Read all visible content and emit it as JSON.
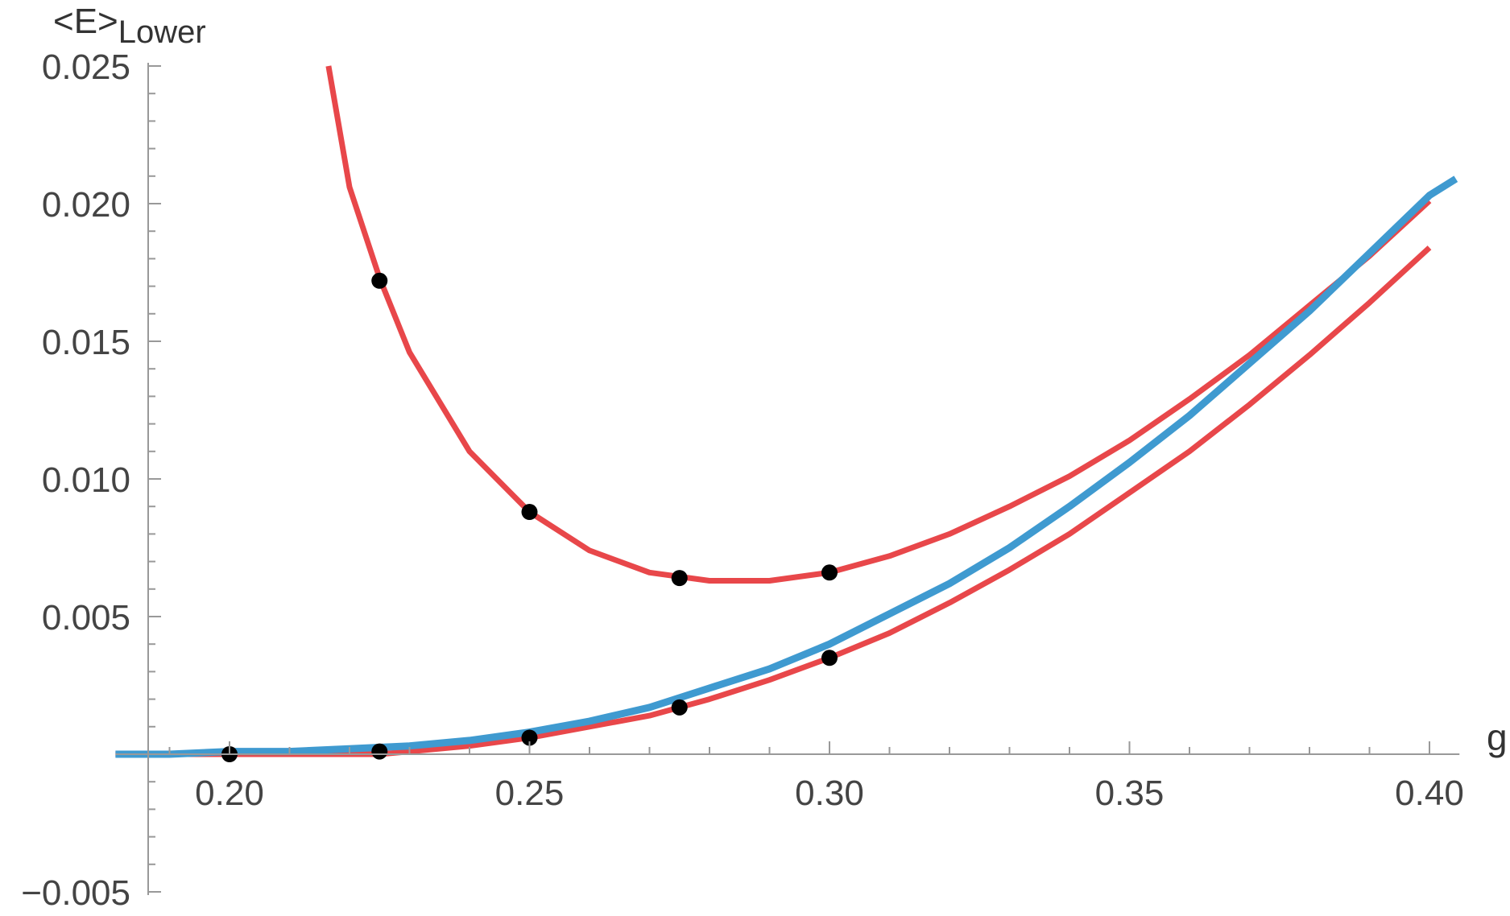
{
  "chart_data": {
    "type": "line",
    "title": "",
    "xlabel": "g",
    "ylabel": "<E>",
    "ylabel_subscript": "Lower",
    "xlim": [
      0.181,
      0.405
    ],
    "ylim": [
      -0.005,
      0.025
    ],
    "x_major_ticks": [
      0.2,
      0.25,
      0.3,
      0.35,
      0.4
    ],
    "x_tick_labels": [
      "0.20",
      "0.25",
      "0.30",
      "0.35",
      "0.40"
    ],
    "x_minor_step": 0.01,
    "y_major_ticks": [
      -0.005,
      0.005,
      0.01,
      0.015,
      0.02,
      0.025
    ],
    "y_tick_labels": [
      "−0.005",
      "0.005",
      "0.010",
      "0.015",
      "0.020",
      "0.025"
    ],
    "y_minor_step": 0.001,
    "grid": false,
    "legend": "none",
    "series": [
      {
        "color": "#e8474a",
        "x": [
          0.2165,
          0.22,
          0.225,
          0.23,
          0.24,
          0.25,
          0.26,
          0.27,
          0.28,
          0.29,
          0.3,
          0.31,
          0.32,
          0.33,
          0.34,
          0.35,
          0.36,
          0.37,
          0.38,
          0.39,
          0.4
        ],
        "y": [
          0.025,
          0.0206,
          0.0173,
          0.0146,
          0.011,
          0.0088,
          0.0074,
          0.0066,
          0.0063,
          0.0063,
          0.0066,
          0.0072,
          0.008,
          0.009,
          0.0101,
          0.0114,
          0.0129,
          0.0145,
          0.0163,
          0.0181,
          0.0201
        ]
      },
      {
        "color": "#e8474a",
        "x": [
          0.181,
          0.2,
          0.21,
          0.22,
          0.225,
          0.23,
          0.24,
          0.25,
          0.26,
          0.27,
          0.28,
          0.29,
          0.3,
          0.31,
          0.32,
          0.33,
          0.34,
          0.35,
          0.36,
          0.37,
          0.38,
          0.39,
          0.4
        ],
        "y": [
          0.0,
          0.0,
          0.0,
          0.0,
          0.0,
          0.0001,
          0.0003,
          0.0006,
          0.001,
          0.0014,
          0.002,
          0.0027,
          0.0035,
          0.0044,
          0.0055,
          0.0067,
          0.008,
          0.0095,
          0.011,
          0.0127,
          0.0145,
          0.0164,
          0.0184
        ]
      },
      {
        "color": "#3f9ad0",
        "x": [
          0.181,
          0.19,
          0.2,
          0.21,
          0.22,
          0.23,
          0.24,
          0.25,
          0.26,
          0.27,
          0.28,
          0.29,
          0.3,
          0.31,
          0.32,
          0.33,
          0.34,
          0.35,
          0.36,
          0.37,
          0.38,
          0.39,
          0.4,
          0.4044
        ],
        "y": [
          0.0,
          0.0,
          0.0001,
          0.0001,
          0.0002,
          0.0003,
          0.0005,
          0.0008,
          0.0012,
          0.0017,
          0.0024,
          0.0031,
          0.004,
          0.0051,
          0.0062,
          0.0075,
          0.009,
          0.0106,
          0.0123,
          0.0142,
          0.0161,
          0.0182,
          0.0203,
          0.0209
        ]
      }
    ],
    "points": {
      "color": "#000000",
      "x": [
        0.2,
        0.225,
        0.225,
        0.25,
        0.25,
        0.275,
        0.275,
        0.3,
        0.3
      ],
      "y": [
        0.0,
        0.0172,
        0.0001,
        0.0088,
        0.0006,
        0.0064,
        0.0017,
        0.0066,
        0.0035
      ]
    }
  }
}
